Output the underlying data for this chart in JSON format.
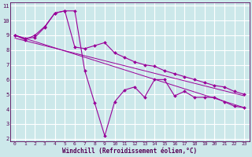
{
  "xlabel": "Windchill (Refroidissement éolien,°C)",
  "bg_color": "#cce8ea",
  "grid_color": "#b0d8dc",
  "line_color": "#990099",
  "xlim": [
    -0.5,
    23.5
  ],
  "ylim": [
    1.8,
    11.2
  ],
  "yticks": [
    2,
    3,
    4,
    5,
    6,
    7,
    8,
    9,
    10,
    11
  ],
  "xticks": [
    0,
    1,
    2,
    3,
    4,
    5,
    6,
    7,
    8,
    9,
    10,
    11,
    12,
    13,
    14,
    15,
    16,
    17,
    18,
    19,
    20,
    21,
    22,
    23
  ],
  "series1_x": [
    0,
    1,
    2,
    3,
    4,
    5,
    6,
    7,
    8,
    9,
    10,
    11,
    12,
    13,
    14,
    15,
    16,
    17,
    18,
    19,
    20,
    21,
    22,
    23
  ],
  "series1_y": [
    9.0,
    8.7,
    9.0,
    9.6,
    10.5,
    10.65,
    10.65,
    6.6,
    4.4,
    2.2,
    4.5,
    5.3,
    5.5,
    4.8,
    6.0,
    6.0,
    4.9,
    5.2,
    4.8,
    4.8,
    4.8,
    4.5,
    4.2,
    4.1
  ],
  "series2_x": [
    0,
    1,
    2,
    3,
    4,
    5,
    6,
    7,
    8,
    9,
    10,
    11,
    12,
    13,
    14,
    15,
    16,
    17,
    18,
    19,
    20,
    21,
    22,
    23
  ],
  "series2_y": [
    9.0,
    8.8,
    8.85,
    9.55,
    10.5,
    10.65,
    8.2,
    8.1,
    8.3,
    8.5,
    7.8,
    7.5,
    7.2,
    7.0,
    6.9,
    6.6,
    6.4,
    6.2,
    6.0,
    5.8,
    5.6,
    5.5,
    5.2,
    5.0
  ],
  "series3_x": [
    0,
    23
  ],
  "series3_y": [
    9.0,
    4.1
  ],
  "series4_x": [
    0,
    23
  ],
  "series4_y": [
    8.8,
    4.9
  ]
}
